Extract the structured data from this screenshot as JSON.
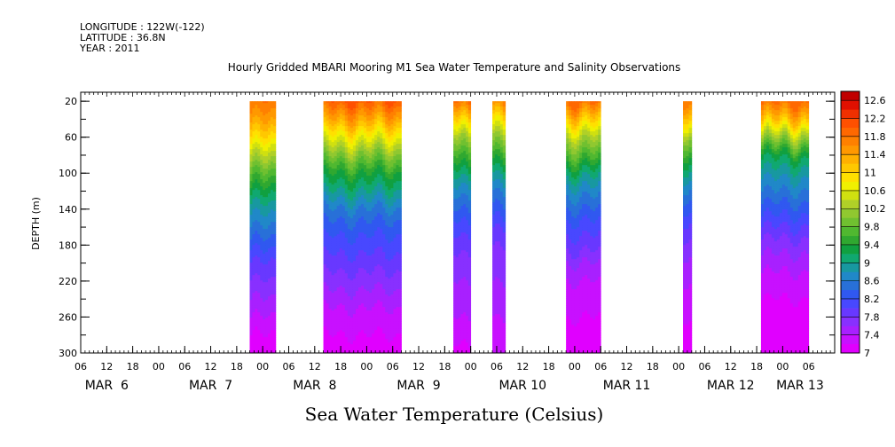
{
  "header": {
    "longitude": "LONGITUDE : 122W(-122)",
    "latitude": "LATITUDE : 36.8N",
    "year": "YEAR : 2011"
  },
  "chart_data": {
    "type": "heatmap",
    "title": "Hourly Gridded MBARI Mooring M1 Sea Water Temperature and Salinity Observations",
    "xlabel": "Sea Water Temperature (Celsius)",
    "ylabel": "DEPTH (m)",
    "x_unit": "hours since MAR 6 00",
    "xlim": [
      6,
      180
    ],
    "ylim": [
      300,
      10
    ],
    "y_ticks": [
      20,
      60,
      100,
      140,
      180,
      220,
      260,
      300
    ],
    "hour_ticks": [
      {
        "h": 6,
        "label": "06"
      },
      {
        "h": 12,
        "label": "12"
      },
      {
        "h": 18,
        "label": "18"
      },
      {
        "h": 24,
        "label": "00"
      },
      {
        "h": 30,
        "label": "06"
      },
      {
        "h": 36,
        "label": "12"
      },
      {
        "h": 42,
        "label": "18"
      },
      {
        "h": 48,
        "label": "00"
      },
      {
        "h": 54,
        "label": "06"
      },
      {
        "h": 60,
        "label": "12"
      },
      {
        "h": 66,
        "label": "18"
      },
      {
        "h": 72,
        "label": "00"
      },
      {
        "h": 78,
        "label": "06"
      },
      {
        "h": 84,
        "label": "12"
      },
      {
        "h": 90,
        "label": "18"
      },
      {
        "h": 96,
        "label": "00"
      },
      {
        "h": 102,
        "label": "06"
      },
      {
        "h": 108,
        "label": "12"
      },
      {
        "h": 114,
        "label": "18"
      },
      {
        "h": 120,
        "label": "00"
      },
      {
        "h": 126,
        "label": "06"
      },
      {
        "h": 132,
        "label": "12"
      },
      {
        "h": 138,
        "label": "18"
      },
      {
        "h": 144,
        "label": "00"
      },
      {
        "h": 150,
        "label": "06"
      },
      {
        "h": 156,
        "label": "12"
      },
      {
        "h": 162,
        "label": "18"
      },
      {
        "h": 168,
        "label": "00"
      },
      {
        "h": 174,
        "label": "06"
      }
    ],
    "date_labels": [
      {
        "h": 12,
        "label": "MAR  6"
      },
      {
        "h": 36,
        "label": "MAR  7"
      },
      {
        "h": 60,
        "label": "MAR  8"
      },
      {
        "h": 84,
        "label": "MAR  9"
      },
      {
        "h": 108,
        "label": "MAR 10"
      },
      {
        "h": 132,
        "label": "MAR 11"
      },
      {
        "h": 156,
        "label": "MAR 12"
      },
      {
        "h": 172,
        "label": "MAR 13"
      }
    ],
    "segments": [
      {
        "start": 45,
        "end": 51,
        "profile": [
          [
            20,
            11.8
          ],
          [
            40,
            11.5
          ],
          [
            60,
            11.0
          ],
          [
            80,
            10.4
          ],
          [
            100,
            9.8
          ],
          [
            120,
            9.3
          ],
          [
            140,
            8.9
          ],
          [
            160,
            8.6
          ],
          [
            180,
            8.3
          ],
          [
            200,
            8.0
          ],
          [
            220,
            7.8
          ],
          [
            240,
            7.6
          ],
          [
            260,
            7.4
          ],
          [
            280,
            7.2
          ],
          [
            300,
            7.1
          ]
        ]
      },
      {
        "start": 62,
        "end": 80,
        "profile": [
          [
            20,
            12.0
          ],
          [
            40,
            11.4
          ],
          [
            60,
            10.7
          ],
          [
            80,
            10.0
          ],
          [
            100,
            9.4
          ],
          [
            120,
            9.0
          ],
          [
            140,
            8.6
          ],
          [
            160,
            8.3
          ],
          [
            180,
            8.1
          ],
          [
            200,
            7.9
          ],
          [
            220,
            7.7
          ],
          [
            240,
            7.5
          ],
          [
            260,
            7.3
          ],
          [
            280,
            7.2
          ],
          [
            300,
            7.1
          ]
        ]
      },
      {
        "start": 92,
        "end": 96,
        "profile": [
          [
            20,
            11.8
          ],
          [
            40,
            11.0
          ],
          [
            60,
            10.2
          ],
          [
            80,
            9.6
          ],
          [
            100,
            9.1
          ],
          [
            120,
            8.7
          ],
          [
            140,
            8.4
          ],
          [
            160,
            8.1
          ],
          [
            180,
            7.9
          ],
          [
            200,
            7.7
          ],
          [
            220,
            7.6
          ],
          [
            240,
            7.5
          ],
          [
            260,
            7.4
          ],
          [
            280,
            7.3
          ],
          [
            300,
            7.1
          ]
        ]
      },
      {
        "start": 101,
        "end": 104,
        "profile": [
          [
            20,
            11.6
          ],
          [
            40,
            10.8
          ],
          [
            60,
            10.1
          ],
          [
            80,
            9.5
          ],
          [
            100,
            9.0
          ],
          [
            120,
            8.6
          ],
          [
            140,
            8.3
          ],
          [
            160,
            8.0
          ],
          [
            180,
            7.8
          ],
          [
            200,
            7.7
          ],
          [
            220,
            7.6
          ],
          [
            240,
            7.5
          ],
          [
            260,
            7.4
          ],
          [
            280,
            7.3
          ],
          [
            300,
            7.2
          ]
        ]
      },
      {
        "start": 118,
        "end": 126,
        "profile": [
          [
            20,
            11.9
          ],
          [
            40,
            11.1
          ],
          [
            60,
            10.3
          ],
          [
            80,
            9.7
          ],
          [
            100,
            9.1
          ],
          [
            120,
            8.7
          ],
          [
            140,
            8.4
          ],
          [
            160,
            8.1
          ],
          [
            180,
            7.9
          ],
          [
            200,
            7.6
          ],
          [
            220,
            7.4
          ],
          [
            240,
            7.3
          ],
          [
            260,
            7.2
          ],
          [
            280,
            7.1
          ],
          [
            300,
            7.0
          ]
        ]
      },
      {
        "start": 145,
        "end": 147,
        "profile": [
          [
            20,
            11.6
          ],
          [
            40,
            10.9
          ],
          [
            60,
            10.0
          ],
          [
            80,
            9.4
          ],
          [
            100,
            8.9
          ],
          [
            120,
            8.5
          ],
          [
            140,
            8.2
          ],
          [
            160,
            7.9
          ],
          [
            180,
            7.7
          ],
          [
            200,
            7.5
          ],
          [
            220,
            7.4
          ],
          [
            240,
            7.3
          ],
          [
            260,
            7.2
          ],
          [
            280,
            7.1
          ],
          [
            300,
            7.1
          ]
        ]
      },
      {
        "start": 163,
        "end": 174,
        "profile": [
          [
            20,
            11.9
          ],
          [
            40,
            11.2
          ],
          [
            60,
            10.2
          ],
          [
            80,
            9.3
          ],
          [
            100,
            8.9
          ],
          [
            120,
            8.6
          ],
          [
            140,
            8.3
          ],
          [
            160,
            8.0
          ],
          [
            180,
            7.7
          ],
          [
            200,
            7.5
          ],
          [
            220,
            7.3
          ],
          [
            240,
            7.2
          ],
          [
            260,
            7.1
          ],
          [
            280,
            7.1
          ],
          [
            300,
            7.0
          ]
        ]
      }
    ],
    "colorbar": {
      "levels": [
        7.0,
        7.2,
        7.4,
        7.6,
        7.8,
        8.0,
        8.2,
        8.4,
        8.6,
        8.8,
        9.0,
        9.2,
        9.4,
        9.6,
        9.8,
        10.0,
        10.2,
        10.4,
        10.6,
        10.8,
        11.0,
        11.2,
        11.4,
        11.6,
        11.8,
        12.0,
        12.2,
        12.4,
        12.6,
        12.8
      ],
      "colors": [
        "#e000ff",
        "#c810ff",
        "#a820ff",
        "#8830ff",
        "#6838ff",
        "#4848ff",
        "#3058f0",
        "#2870d8",
        "#2088c8",
        "#1898a0",
        "#10a870",
        "#10a040",
        "#30a830",
        "#50b830",
        "#70c030",
        "#90c830",
        "#b0d028",
        "#d0e010",
        "#f0f000",
        "#ffe000",
        "#ffc800",
        "#ffb000",
        "#ff9800",
        "#ff8000",
        "#ff6800",
        "#ff5000",
        "#f03000",
        "#e01000",
        "#c00000"
      ],
      "labels": [
        "7",
        "7.4",
        "7.8",
        "8.2",
        "8.6",
        "9",
        "9.4",
        "9.8",
        "10.2",
        "10.6",
        "11",
        "11.4",
        "11.8",
        "12.2",
        "12.6"
      ]
    }
  }
}
